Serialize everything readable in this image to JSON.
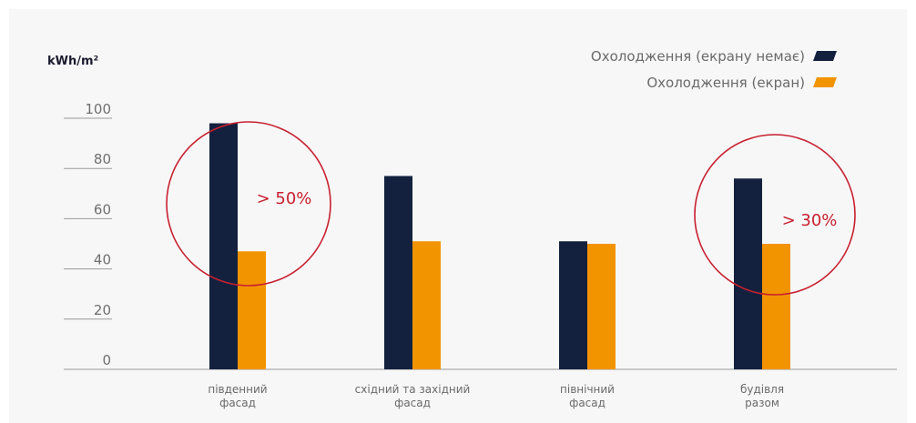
{
  "chart_data": {
    "type": "bar",
    "ylabel": "kWh/m²",
    "ylim": [
      0,
      100
    ],
    "yticks": [
      0,
      20,
      40,
      60,
      80,
      100
    ],
    "categories": [
      [
        "південний",
        "фасад"
      ],
      [
        "східний та західний",
        "фасад"
      ],
      [
        "північний",
        "фасад"
      ],
      [
        "будівля",
        "разом"
      ]
    ],
    "series": [
      {
        "name": "Охолодження (екрану немає)",
        "color": "#13213f",
        "values": [
          98,
          77,
          51,
          76
        ]
      },
      {
        "name": "Охолодження (екран)",
        "color": "#f29400",
        "values": [
          47,
          51,
          50,
          50
        ]
      }
    ],
    "legend_position": "top-right",
    "grid": false,
    "annotations": [
      {
        "text": "> 50%",
        "category_index": 0,
        "color": "#c8202f"
      },
      {
        "text": "> 30%",
        "category_index": 3,
        "color": "#c8202f"
      }
    ]
  }
}
